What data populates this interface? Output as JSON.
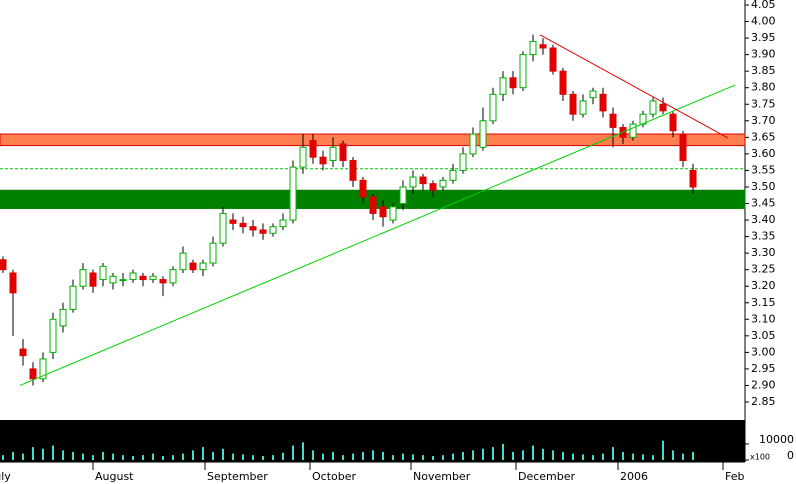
{
  "chart_data": {
    "type": "candlestick",
    "open": [
      3.28,
      3.24,
      3.01,
      2.95,
      2.92,
      3.0,
      3.08,
      3.13,
      3.2,
      3.24,
      3.22,
      3.21,
      3.22,
      3.22,
      3.23,
      3.22,
      3.22,
      3.21,
      3.25,
      3.27,
      3.25,
      3.27,
      3.33,
      3.4,
      3.39,
      3.38,
      3.37,
      3.36,
      3.38,
      3.4,
      3.56,
      3.64,
      3.59,
      3.58,
      3.63,
      3.58,
      3.52,
      3.47,
      3.44,
      3.4,
      3.45,
      3.5,
      3.53,
      3.51,
      3.5,
      3.52,
      3.55,
      3.6,
      3.62,
      3.7,
      3.78,
      3.83,
      3.8,
      3.9,
      3.93,
      3.92,
      3.85,
      3.78,
      3.72,
      3.77,
      3.78,
      3.72,
      3.68,
      3.65,
      3.69,
      3.72,
      3.75,
      3.72,
      3.66,
      3.55
    ],
    "high": [
      3.29,
      3.25,
      3.04,
      2.97,
      3.0,
      3.12,
      3.15,
      3.22,
      3.27,
      3.25,
      3.27,
      3.24,
      3.24,
      3.25,
      3.24,
      3.24,
      3.23,
      3.26,
      3.32,
      3.28,
      3.28,
      3.35,
      3.44,
      3.42,
      3.41,
      3.4,
      3.39,
      3.39,
      3.42,
      3.58,
      3.66,
      3.66,
      3.61,
      3.65,
      3.64,
      3.59,
      3.53,
      3.48,
      3.46,
      3.45,
      3.52,
      3.55,
      3.54,
      3.52,
      3.53,
      3.57,
      3.62,
      3.68,
      3.74,
      3.8,
      3.85,
      3.85,
      3.91,
      3.96,
      3.95,
      3.93,
      3.86,
      3.79,
      3.78,
      3.8,
      3.8,
      3.74,
      3.69,
      3.7,
      3.73,
      3.77,
      3.77,
      3.73,
      3.67,
      3.57
    ],
    "low": [
      3.24,
      3.05,
      2.96,
      2.9,
      2.91,
      2.98,
      3.06,
      3.12,
      3.19,
      3.18,
      3.2,
      3.19,
      3.2,
      3.21,
      3.2,
      3.21,
      3.17,
      3.2,
      3.24,
      3.24,
      3.23,
      3.26,
      3.32,
      3.37,
      3.36,
      3.35,
      3.34,
      3.35,
      3.37,
      3.39,
      3.54,
      3.57,
      3.55,
      3.56,
      3.56,
      3.5,
      3.45,
      3.4,
      3.38,
      3.39,
      3.43,
      3.48,
      3.49,
      3.47,
      3.49,
      3.51,
      3.54,
      3.59,
      3.61,
      3.69,
      3.76,
      3.78,
      3.79,
      3.88,
      3.9,
      3.84,
      3.76,
      3.7,
      3.71,
      3.75,
      3.71,
      3.62,
      3.63,
      3.64,
      3.68,
      3.71,
      3.72,
      3.65,
      3.56,
      3.48
    ],
    "close": [
      3.25,
      3.18,
      2.99,
      2.92,
      2.98,
      3.1,
      3.13,
      3.2,
      3.25,
      3.2,
      3.26,
      3.23,
      3.22,
      3.24,
      3.22,
      3.23,
      3.21,
      3.25,
      3.3,
      3.25,
      3.27,
      3.33,
      3.42,
      3.39,
      3.38,
      3.37,
      3.36,
      3.38,
      3.4,
      3.56,
      3.62,
      3.59,
      3.57,
      3.62,
      3.58,
      3.52,
      3.47,
      3.42,
      3.41,
      3.44,
      3.5,
      3.53,
      3.51,
      3.49,
      3.52,
      3.55,
      3.6,
      3.66,
      3.7,
      3.78,
      3.83,
      3.8,
      3.9,
      3.94,
      3.92,
      3.85,
      3.78,
      3.72,
      3.76,
      3.79,
      3.73,
      3.68,
      3.65,
      3.69,
      3.72,
      3.76,
      3.73,
      3.67,
      3.58,
      3.5
    ],
    "volume": [
      3000,
      5000,
      4000,
      8000,
      7000,
      9000,
      6000,
      5000,
      4000,
      3000,
      5000,
      4000,
      3000,
      2500,
      3000,
      4000,
      2500,
      3000,
      4000,
      6000,
      8000,
      5000,
      7000,
      4000,
      3500,
      3000,
      2500,
      3000,
      4500,
      9000,
      11000,
      6000,
      4000,
      5000,
      3000,
      4000,
      5000,
      6000,
      5000,
      3000,
      4000,
      3500,
      3000,
      2500,
      3000,
      4000,
      5000,
      6000,
      7000,
      8000,
      10000,
      5000,
      6000,
      9000,
      7000,
      6000,
      5000,
      4000,
      3500,
      3000,
      4000,
      8000,
      5000,
      4000,
      3500,
      3000,
      12000,
      6000,
      4000,
      5000
    ],
    "up_color": "#00b000",
    "down_color": "#e00000",
    "volume_color": "#40e0d0",
    "xlim": [
      -0.3,
      74.2
    ],
    "xticks": [
      {
        "value": -1.2,
        "label": "July"
      },
      {
        "value": 9.2,
        "label": "August"
      },
      {
        "value": 20.4,
        "label": "September"
      },
      {
        "value": 30.9,
        "label": "October"
      },
      {
        "value": 41,
        "label": "November"
      },
      {
        "value": 51.5,
        "label": "December"
      },
      {
        "value": 61.7,
        "label": "2006"
      },
      {
        "value": 72.2,
        "label": "Feb"
      }
    ],
    "ylim": [
      2.85,
      4.05
    ],
    "yticks": [
      4.05,
      {
        "value": 4,
        "label": "4.00"
      },
      3.95,
      {
        "value": 3.9,
        "label": "3.90"
      },
      3.85,
      {
        "value": 3.8,
        "label": "3.80"
      },
      3.75,
      {
        "value": 3.7,
        "label": "3.70"
      },
      3.65,
      {
        "value": 3.6,
        "label": "3.60"
      },
      3.55,
      {
        "value": 3.5,
        "label": "3.50"
      },
      3.45,
      {
        "value": 3.4,
        "label": "3.40"
      },
      3.35,
      {
        "value": 3.3,
        "label": "3.30"
      },
      3.25,
      {
        "value": 3.2,
        "label": "3.20"
      },
      3.15,
      {
        "value": 3.1,
        "label": "3.10"
      },
      3.05,
      {
        "value": 3,
        "label": "3.00"
      },
      2.95,
      {
        "value": 2.9,
        "label": "2.90"
      },
      2.85
    ],
    "volume_ylim": [
      0,
      23000
    ],
    "volume_yticks": [
      0,
      10000
    ],
    "volume_unit": "x100",
    "bands": [
      {
        "low": 3.625,
        "high": 3.66,
        "color": "#ff7f50"
      },
      {
        "low": 3.435,
        "high": 3.49,
        "color": "#008000"
      }
    ],
    "hlines": [
      {
        "value": 3.555,
        "color": "#00c000"
      }
    ],
    "trendlines": [
      {
        "x": [
          1.7,
          73.2
        ],
        "y": [
          2.9,
          3.808
        ],
        "color": "#00d000"
      },
      {
        "x": [
          53.7,
          72.5
        ],
        "y": [
          3.96,
          3.648
        ],
        "color": "#e00000"
      }
    ]
  }
}
